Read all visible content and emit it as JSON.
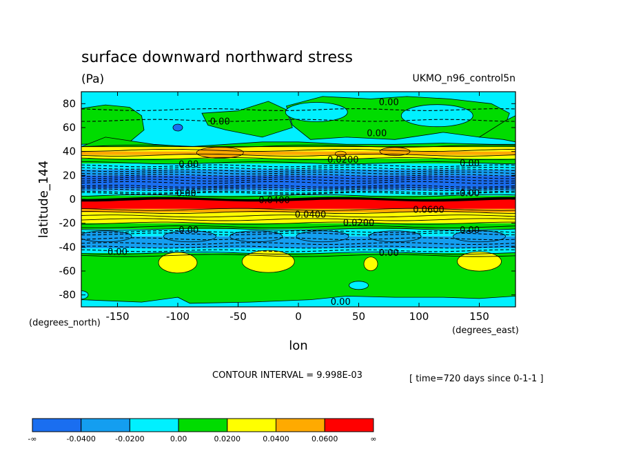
{
  "chart_data": {
    "type": "heatmap",
    "title": "surface downward northward stress",
    "units": "(Pa)",
    "dataset": "UKMO_n96_control5n",
    "xlabel": "lon",
    "ylabel": "latitude_144",
    "x_units": "(degrees_east)",
    "y_units": "(degrees_north)",
    "xlim": [
      -180,
      180
    ],
    "ylim": [
      -90,
      90
    ],
    "x_ticks": [
      -150,
      -100,
      -50,
      0,
      50,
      100,
      150
    ],
    "y_ticks": [
      80,
      60,
      40,
      20,
      0,
      -20,
      -40,
      -60,
      -80
    ],
    "x_tick_labels": [
      "-150",
      "-100",
      "-50",
      "0",
      "50",
      "100",
      "150"
    ],
    "y_tick_labels": [
      "80",
      "60",
      "40",
      "20",
      "0",
      "-20",
      "-40",
      "-60",
      "-80"
    ],
    "contour_interval": "CONTOUR INTERVAL = 9.998E-03",
    "time_note": "[ time=720 days since 0-1-1 ]",
    "latitude_bands": [
      {
        "from": 90,
        "to": 86,
        "level": "-0.0200 to 0.00"
      },
      {
        "from": 86,
        "to": 45,
        "level": "-0.0200 to 0.00 (mixed 0.00 to 0.0200)"
      },
      {
        "from": 45,
        "to": 33,
        "level": "0.0200 to 0.0600"
      },
      {
        "from": 33,
        "to": 8,
        "level": "-0.0400 to 0.00"
      },
      {
        "from": 8,
        "to": 0,
        "level": "0.00 to 0.0200"
      },
      {
        "from": 0,
        "to": -8,
        "level": "0.0600 to ∞"
      },
      {
        "from": -8,
        "to": -25,
        "level": "0.0200 to 0.0600"
      },
      {
        "from": -25,
        "to": -45,
        "level": "-0.0400 to 0.00"
      },
      {
        "from": -45,
        "to": -90,
        "level": "0.00 to 0.0400"
      }
    ],
    "contour_labels": [
      {
        "text": "0.00",
        "lon": 75,
        "lat": 81
      },
      {
        "text": "0.00",
        "lon": -65,
        "lat": 65
      },
      {
        "text": "0.00",
        "lon": 65,
        "lat": 55
      },
      {
        "text": "0.00",
        "lon": -91,
        "lat": 29
      },
      {
        "text": "0.0200",
        "lon": 37,
        "lat": 33
      },
      {
        "text": "0.00",
        "lon": 142,
        "lat": 30
      },
      {
        "text": "0.00",
        "lon": -93,
        "lat": 5
      },
      {
        "text": "0.0400",
        "lon": -20,
        "lat": -1
      },
      {
        "text": "0.00",
        "lon": 142,
        "lat": 5
      },
      {
        "text": "0.0400",
        "lon": 10,
        "lat": -13
      },
      {
        "text": "0.0600",
        "lon": 108,
        "lat": -9
      },
      {
        "text": "0.0200",
        "lon": 50,
        "lat": -20
      },
      {
        "text": "0.00",
        "lon": -91,
        "lat": -26
      },
      {
        "text": "0.00",
        "lon": 142,
        "lat": -26
      },
      {
        "text": "0.00",
        "lon": -150,
        "lat": -44
      },
      {
        "text": "0.00",
        "lon": 75,
        "lat": -45
      },
      {
        "text": "0.00",
        "lon": 35,
        "lat": -86
      }
    ]
  },
  "colorbar": {
    "levels": [
      "-∞",
      "-0.0400",
      "-0.0200",
      "0.00",
      "0.0200",
      "0.0400",
      "0.0600",
      "∞"
    ],
    "colors": [
      "#1a6ef0",
      "#149ef0",
      "#00f0ff",
      "#00dc00",
      "#ffff00",
      "#ffaa00",
      "#ff0000"
    ]
  },
  "palette": {
    "neg_strong": "#1a6ef0",
    "neg_mid": "#149ef0",
    "neg_weak": "#00f0ff",
    "pos_weak": "#00dc00",
    "pos_mid": "#ffff00",
    "pos_strong": "#ffaa00",
    "pos_max": "#ff0000"
  }
}
